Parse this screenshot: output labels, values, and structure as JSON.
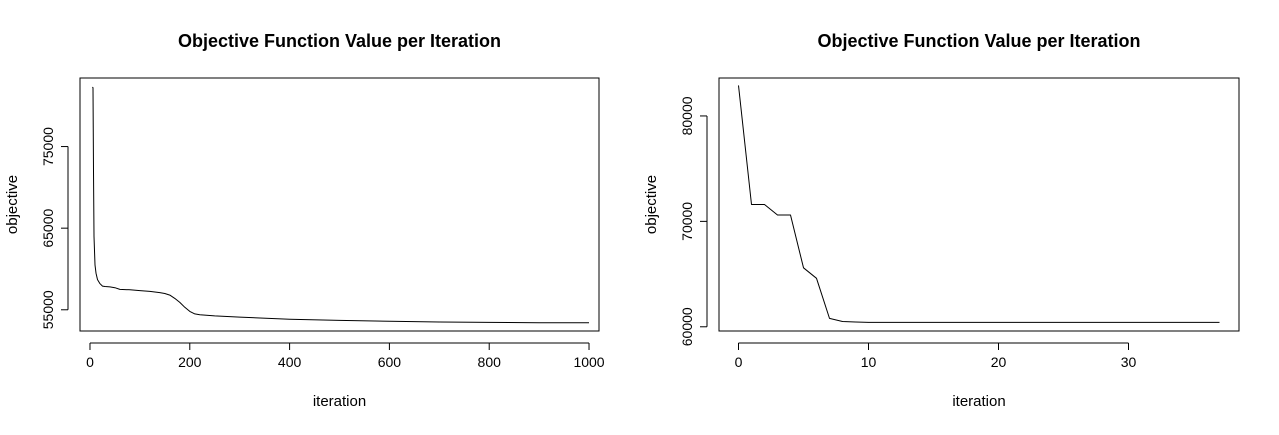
{
  "chart_data": [
    {
      "type": "line",
      "title": "Objective Function Value per Iteration",
      "xlabel": "iteration",
      "ylabel": "objective",
      "xlim": [
        -20,
        1020
      ],
      "ylim": [
        52400,
        83400
      ],
      "xticks": [
        0,
        200,
        400,
        600,
        800,
        1000
      ],
      "xtick_labels": [
        "0",
        "200",
        "400",
        "600",
        "800",
        "1000"
      ],
      "yticks": [
        55000,
        65000,
        75000
      ],
      "ytick_labels": [
        "55000",
        "65000",
        "75000"
      ],
      "grid": false,
      "series": [
        {
          "x": [
            5,
            6,
            7,
            8,
            10,
            12,
            15,
            20,
            25,
            30,
            40,
            50,
            60,
            80,
            100,
            120,
            140,
            150,
            160,
            170,
            180,
            190,
            200,
            210,
            220,
            230,
            250,
            300,
            400,
            500,
            600,
            700,
            800,
            900,
            1000
          ],
          "y": [
            82300,
            82200,
            72000,
            64000,
            60500,
            59500,
            58700,
            58200,
            57900,
            57850,
            57800,
            57700,
            57500,
            57450,
            57350,
            57250,
            57100,
            57000,
            56800,
            56400,
            55900,
            55300,
            54800,
            54500,
            54400,
            54350,
            54250,
            54100,
            53850,
            53700,
            53600,
            53500,
            53450,
            53420,
            53400
          ]
        }
      ]
    },
    {
      "type": "line",
      "title": "Objective Function Value per Iteration",
      "xlabel": "iteration",
      "ylabel": "objective",
      "xlim": [
        -1.5,
        38.5
      ],
      "ylim": [
        59600,
        83600
      ],
      "xticks": [
        0,
        10,
        20,
        30
      ],
      "xtick_labels": [
        "0",
        "10",
        "20",
        "30"
      ],
      "yticks": [
        60000,
        70000,
        80000
      ],
      "ytick_labels": [
        "60000",
        "70000",
        "80000"
      ],
      "grid": false,
      "series": [
        {
          "x": [
            0,
            1,
            2,
            3,
            4,
            5,
            6,
            7,
            8,
            9,
            10,
            15,
            20,
            30,
            37
          ],
          "y": [
            82900,
            71600,
            71600,
            70600,
            70600,
            65600,
            64600,
            60800,
            60500,
            60450,
            60420,
            60420,
            60420,
            60420,
            60420
          ]
        }
      ]
    }
  ]
}
